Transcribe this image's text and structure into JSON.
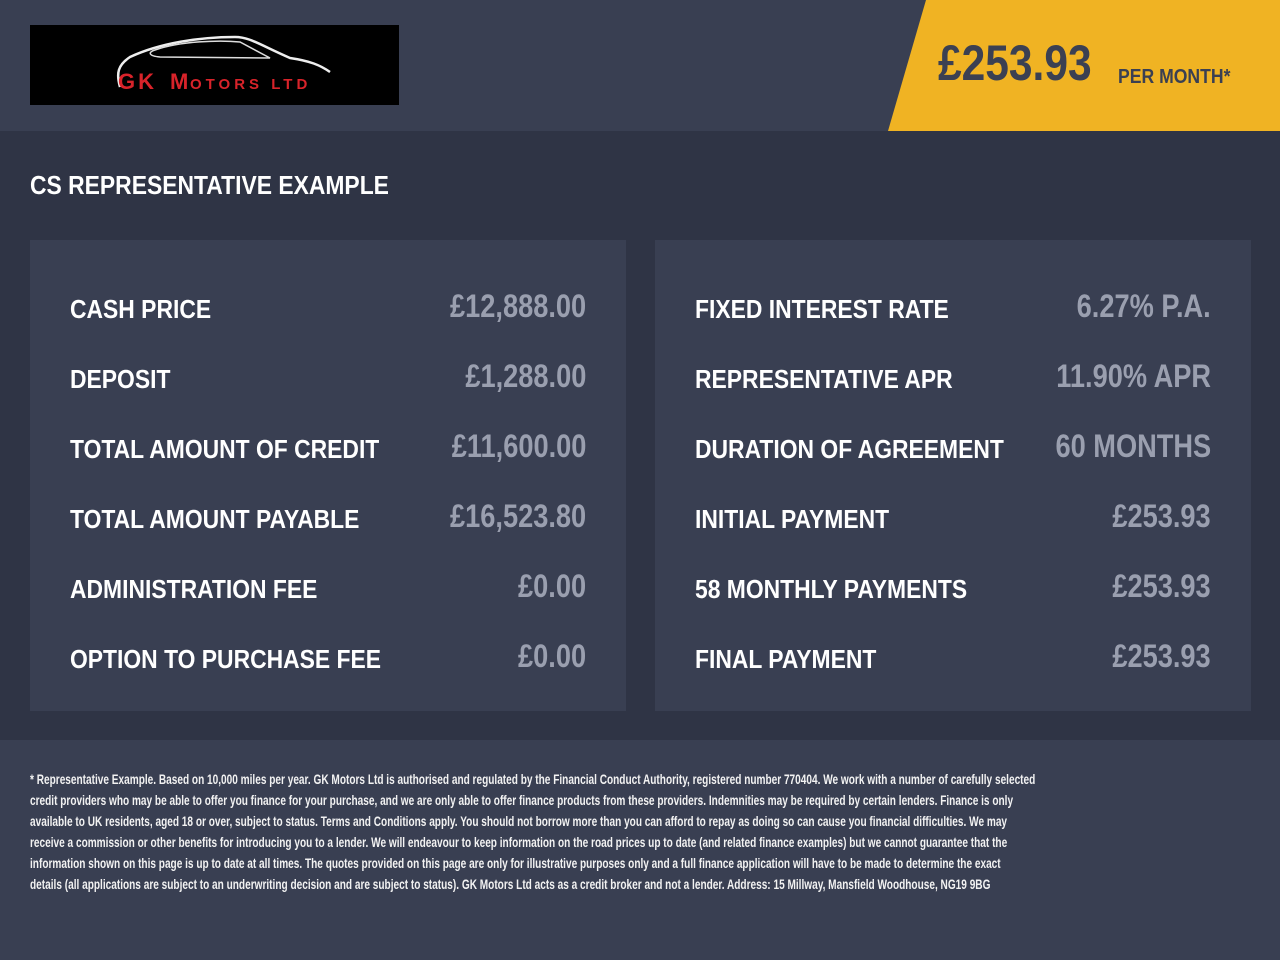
{
  "logo": {
    "text_main": "GK Motors",
    "text_suffix": "LTD",
    "accent": "#d8232a"
  },
  "header": {
    "price": "£253.93",
    "per_month": "PER MONTH*",
    "accent": "#f0b323"
  },
  "title": "CS REPRESENTATIVE EXAMPLE",
  "left": [
    {
      "label": "CASH PRICE",
      "value": "£12,888.00"
    },
    {
      "label": "DEPOSIT",
      "value": "£1,288.00"
    },
    {
      "label": "TOTAL AMOUNT OF CREDIT",
      "value": "£11,600.00"
    },
    {
      "label": "TOTAL AMOUNT PAYABLE",
      "value": "£16,523.80"
    },
    {
      "label": "ADMINISTRATION FEE",
      "value": "£0.00"
    },
    {
      "label": "OPTION TO PURCHASE FEE",
      "value": "£0.00"
    }
  ],
  "right": [
    {
      "label": "FIXED INTEREST RATE",
      "value": "6.27% P.A."
    },
    {
      "label": "REPRESENTATIVE APR",
      "value": "11.90% APR"
    },
    {
      "label": "DURATION OF AGREEMENT",
      "value": "60 MONTHS"
    },
    {
      "label": "INITIAL PAYMENT",
      "value": "£253.93"
    },
    {
      "label": "58 MONTHLY PAYMENTS",
      "value": "£253.93"
    },
    {
      "label": "FINAL PAYMENT",
      "value": "£253.93"
    }
  ],
  "footer": [
    "* Representative Example. Based on 10,000 miles per year. GK Motors Ltd is authorised and regulated by the Financial Conduct Authority, registered number 770404. We work with a number of carefully selected",
    "credit providers who may be able to offer you finance for your purchase, and we are only able to offer finance products from these providers. Indemnities may be required by certain lenders. Finance is only",
    "available to UK residents, aged 18 or over, subject to status. Terms and Conditions apply. You should not borrow more than you can afford to repay as doing so can cause you financial difficulties. We may",
    "receive a commission or other benefits for introducing you to a lender. We will endeavour to keep information on the road prices up to date (and related finance examples) but we cannot guarantee that the",
    "information shown on this page is up to date at all times. The quotes provided on this page are only for illustrative purposes only and a full finance application will have to be made to determine the exact",
    "details (all applications are subject to an underwriting decision and are subject to status). GK Motors Ltd acts as a credit broker and not a lender. Address: 15 Millway, Mansfield Woodhouse, NG19 9BG"
  ]
}
